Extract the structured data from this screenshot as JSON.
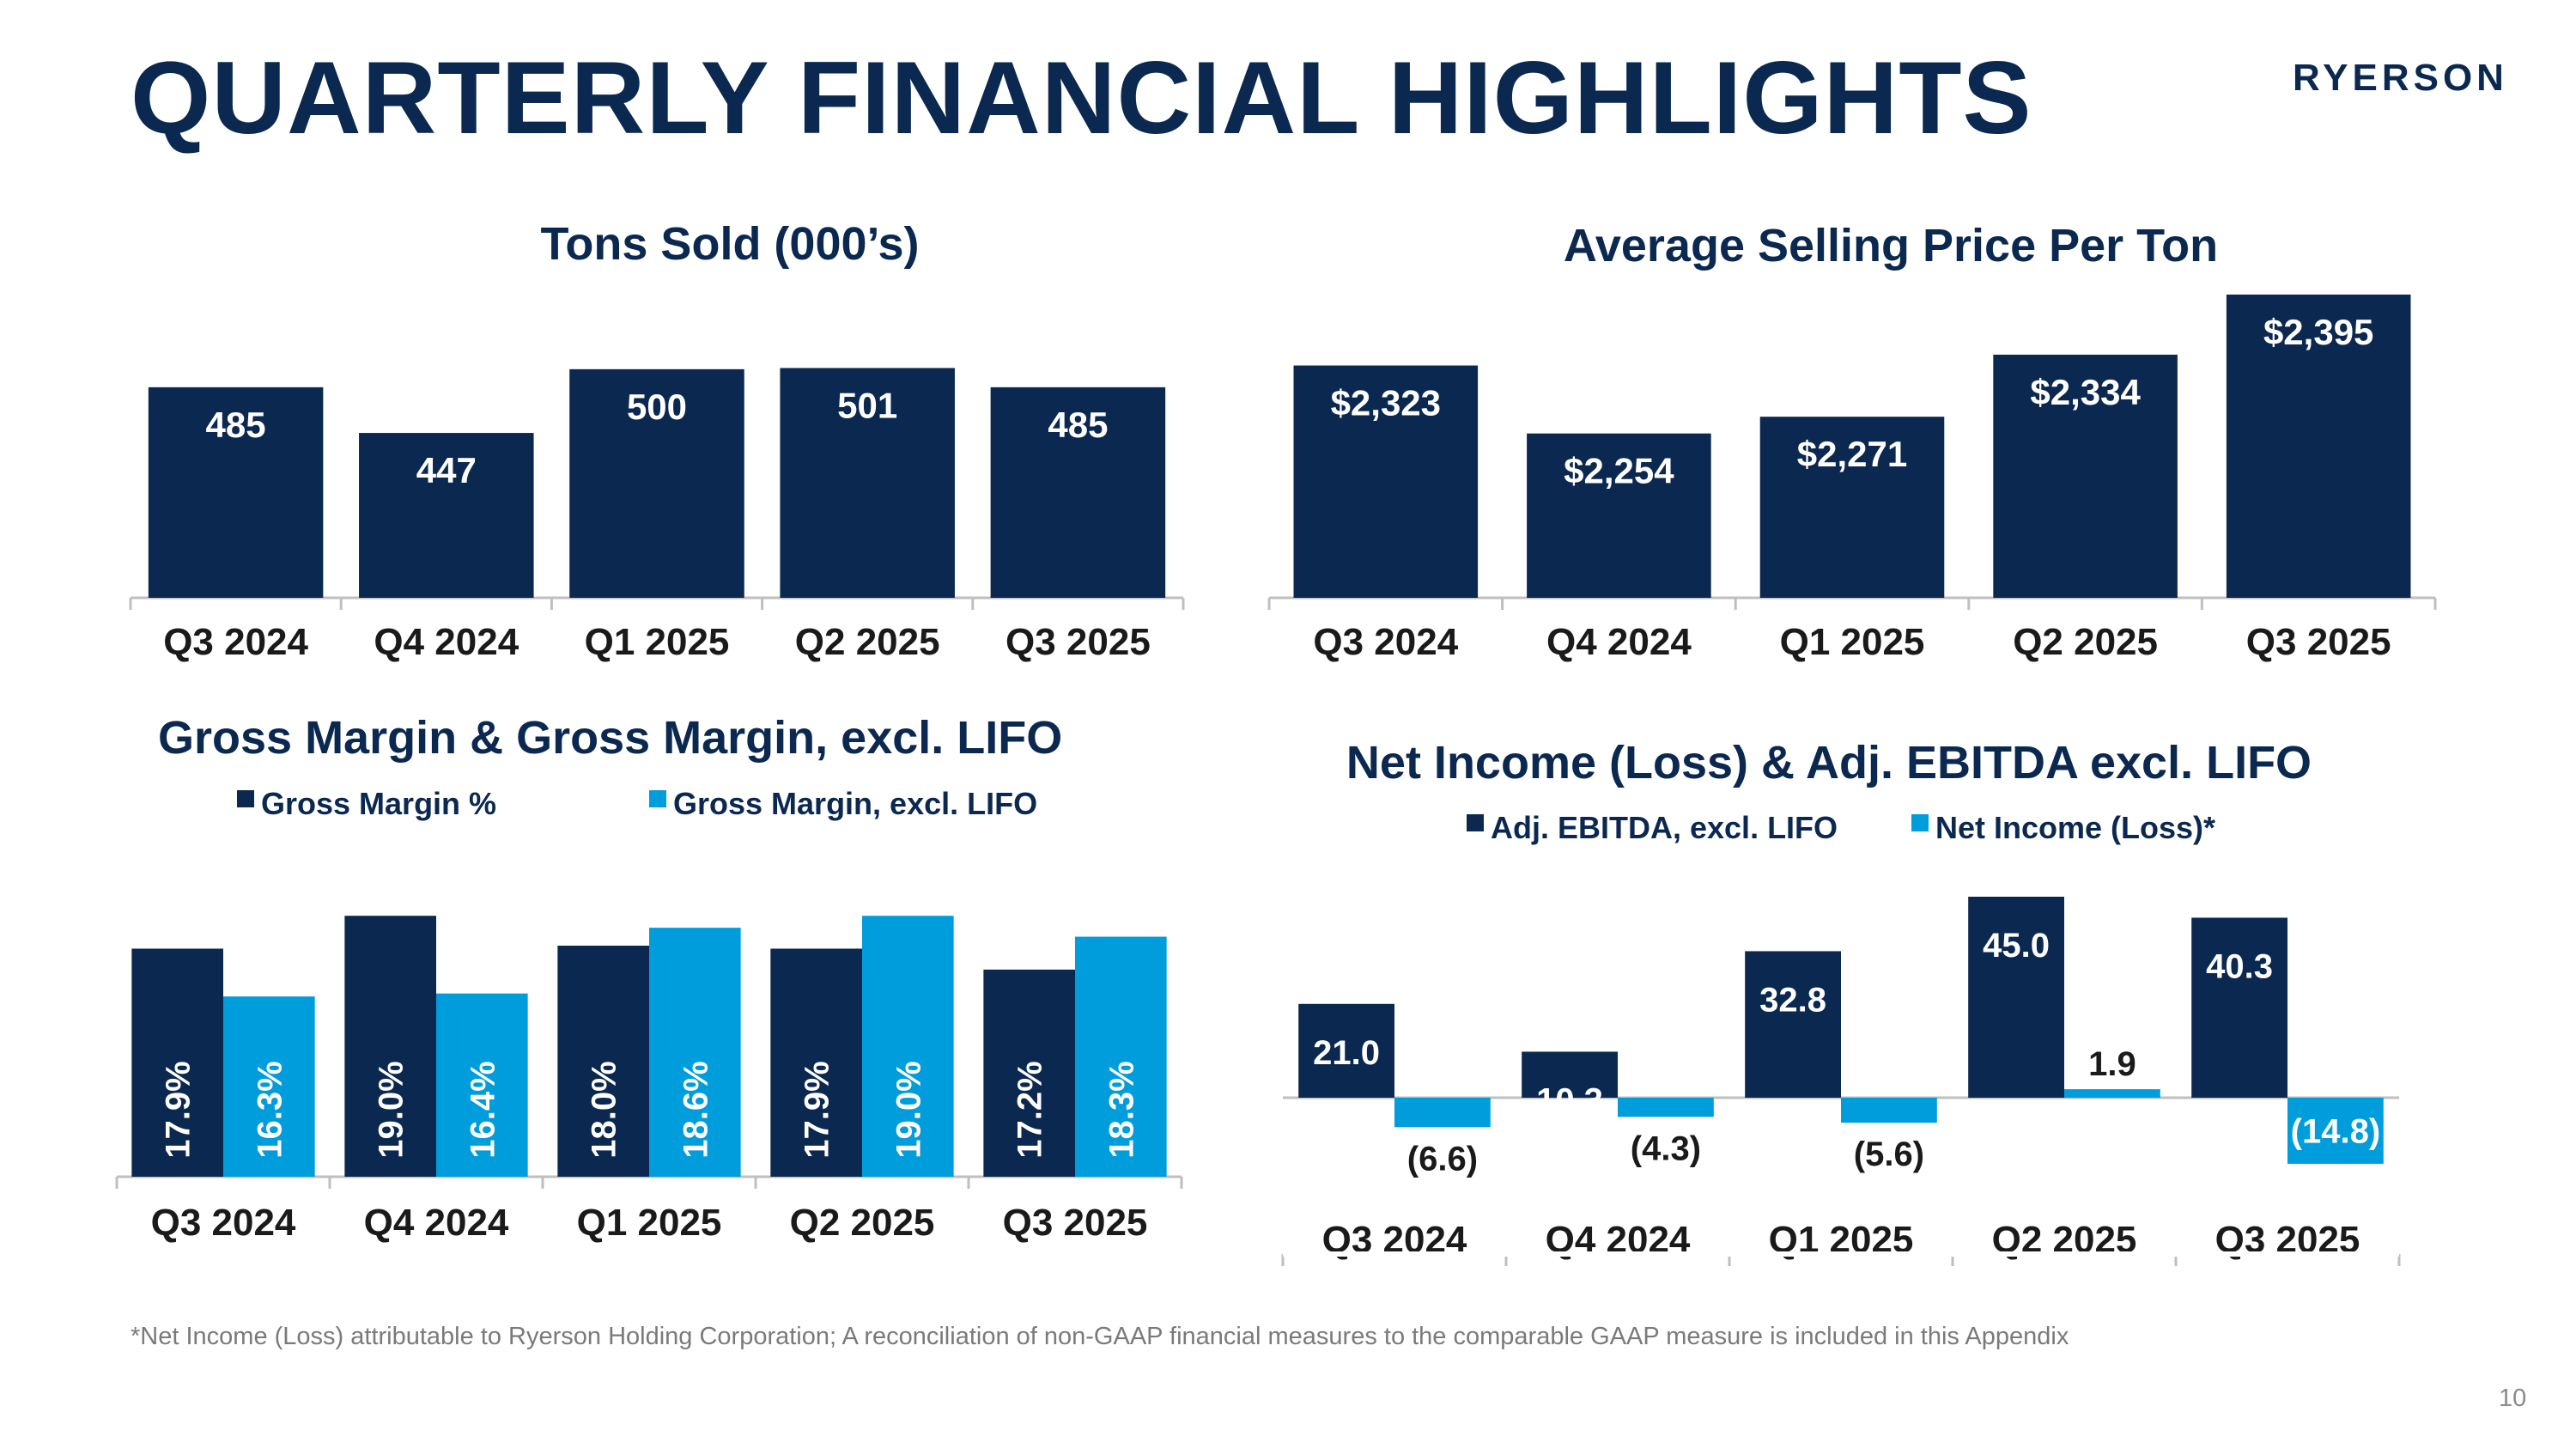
{
  "page": {
    "title": "QUARTERLY FINANCIAL HIGHLIGHTS",
    "logo_text": "RYERSON",
    "footnote": "*Net Income (Loss) attributable to Ryerson Holding Corporation; A reconciliation of non-GAAP financial measures to the comparable GAAP measure is included in this Appendix",
    "page_number": "10"
  },
  "colors": {
    "navy": "#0b2850",
    "light_blue": "#009ddc",
    "axis": "#bfbfbf",
    "text_dark": "#1a1a1a"
  },
  "chart_data": [
    {
      "type": "bar",
      "title": "Tons Sold (000’s)",
      "categories": [
        "Q3 2024",
        "Q4 2024",
        "Q1 2025",
        "Q2 2025",
        "Q3 2025"
      ],
      "series": [
        {
          "values": [
            485,
            447,
            500,
            501,
            485
          ],
          "labels": [
            "485",
            "447",
            "500",
            "501",
            "485"
          ]
        }
      ]
    },
    {
      "type": "bar",
      "title": "Average Selling Price Per Ton",
      "categories": [
        "Q3 2024",
        "Q4 2024",
        "Q1 2025",
        "Q2 2025",
        "Q3 2025"
      ],
      "series": [
        {
          "values": [
            2323,
            2254,
            2271,
            2334,
            2395
          ],
          "labels": [
            "$2,323",
            "$2,254",
            "$2,271",
            "$2,334",
            "$2,395"
          ]
        }
      ]
    },
    {
      "type": "bar",
      "title": "Gross Margin & Gross Margin, excl. LIFO",
      "categories": [
        "Q3 2024",
        "Q4 2024",
        "Q1 2025",
        "Q2 2025",
        "Q3 2025"
      ],
      "legend_position": "top",
      "series": [
        {
          "name": "Gross Margin %",
          "values": [
            17.9,
            19.0,
            18.0,
            17.9,
            17.2
          ],
          "labels": [
            "17.9%",
            "19.0%",
            "18.0%",
            "17.9%",
            "17.2%"
          ]
        },
        {
          "name": "Gross Margin, excl. LIFO",
          "values": [
            16.3,
            16.4,
            18.6,
            19.0,
            18.3
          ],
          "labels": [
            "16.3%",
            "16.4%",
            "18.6%",
            "19.0%",
            "18.3%"
          ]
        }
      ]
    },
    {
      "type": "bar",
      "title": "Net Income (Loss) & Adj. EBITDA excl. LIFO",
      "categories": [
        "Q3 2024",
        "Q4 2024",
        "Q1 2025",
        "Q2 2025",
        "Q3 2025"
      ],
      "legend_position": "top",
      "series": [
        {
          "name": "Adj. EBITDA, excl. LIFO",
          "values": [
            21.0,
            10.3,
            32.8,
            45.0,
            40.3
          ],
          "labels": [
            "21.0",
            "10.3",
            "32.8",
            "45.0",
            "40.3"
          ]
        },
        {
          "name": "Net Income (Loss)*",
          "values": [
            -6.6,
            -4.3,
            -5.6,
            1.9,
            -14.8
          ],
          "labels": [
            "(6.6)",
            "(4.3)",
            "(5.6)",
            "1.9",
            "(14.8)"
          ]
        }
      ]
    }
  ]
}
